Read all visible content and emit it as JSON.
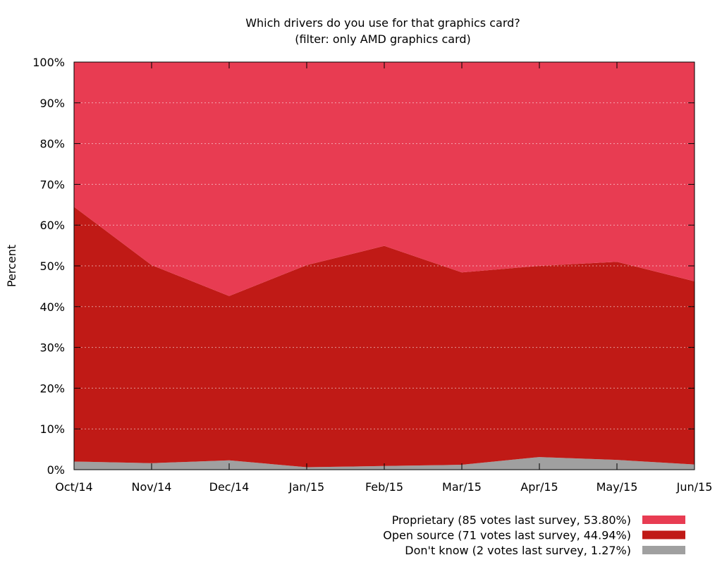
{
  "chart_data": {
    "type": "area",
    "stacked": true,
    "title": "Which drivers do you use for that graphics card?",
    "subtitle": "(filter: only AMD graphics card)",
    "xlabel": "",
    "ylabel": "Percent",
    "ylim": [
      0,
      100
    ],
    "y_ticks": [
      "0%",
      "10%",
      "20%",
      "30%",
      "40%",
      "50%",
      "60%",
      "70%",
      "80%",
      "90%",
      "100%"
    ],
    "categories": [
      "Oct/14",
      "Nov/14",
      "Dec/14",
      "Jan/15",
      "Feb/15",
      "Mar/15",
      "Apr/15",
      "May/15",
      "Jun/15"
    ],
    "grid": true,
    "legend_position": "bottom-right",
    "series": [
      {
        "name": "Don't know",
        "legend": "Don't know (2 votes last survey, 1.27%)",
        "color": "#a0a0a0",
        "values": [
          2.0,
          1.6,
          2.3,
          0.6,
          0.9,
          1.2,
          3.1,
          2.4,
          1.27
        ]
      },
      {
        "name": "Open source",
        "legend": "Open source (71 votes last survey, 44.94%)",
        "color": "#c01a16",
        "values": [
          62.5,
          48.6,
          40.3,
          49.6,
          54.0,
          47.2,
          46.9,
          48.6,
          44.94
        ]
      },
      {
        "name": "Proprietary",
        "legend": "Proprietary (85 votes last survey, 53.80%)",
        "color": "#e83c52",
        "values": [
          35.5,
          49.8,
          57.4,
          49.8,
          45.1,
          51.6,
          50.0,
          49.0,
          53.8
        ]
      }
    ]
  }
}
